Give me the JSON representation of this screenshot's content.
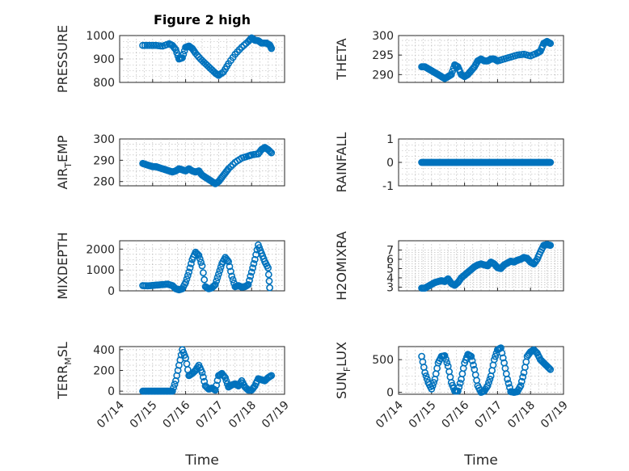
{
  "chart_data": [
    {
      "type": "scatter",
      "title": "Figure 2 high",
      "ylabel": "PRESSURE",
      "ylim": [
        800,
        1000
      ],
      "yticks": [
        "800",
        "900",
        "1000"
      ],
      "xlim": [
        0,
        5
      ],
      "xticks": [
        "07/14",
        "07/15",
        "07/16",
        "07/17",
        "07/18",
        "07/19"
      ],
      "x_tick_labels_visible": false,
      "xlabel": "",
      "series": [
        {
          "x": [
            0.7,
            0.9,
            1.1,
            1.3,
            1.5,
            1.6,
            1.7,
            1.8,
            1.9,
            2.0,
            2.1,
            2.2,
            2.3,
            2.45,
            2.6,
            2.75,
            2.9,
            3.0,
            3.15,
            3.3,
            3.5,
            3.7,
            3.9,
            4.0,
            4.1,
            4.2,
            4.3,
            4.45,
            4.55,
            4.6
          ],
          "y": [
            958,
            958,
            958,
            955,
            965,
            958,
            940,
            900,
            905,
            950,
            955,
            945,
            925,
            900,
            880,
            860,
            840,
            830,
            845,
            880,
            920,
            950,
            975,
            990,
            980,
            978,
            968,
            968,
            960,
            945
          ]
        }
      ]
    },
    {
      "type": "scatter",
      "ylabel": "THETA",
      "ylim": [
        288,
        300
      ],
      "yticks": [
        "290",
        "295",
        "300"
      ],
      "xlim": [
        0,
        5
      ],
      "xticks": [
        "07/14",
        "07/15",
        "07/16",
        "07/17",
        "07/18",
        "07/19"
      ],
      "x_tick_labels_visible": false,
      "xlabel": "",
      "series": [
        {
          "x": [
            0.7,
            0.8,
            0.9,
            1.0,
            1.1,
            1.2,
            1.3,
            1.4,
            1.5,
            1.6,
            1.7,
            1.8,
            1.9,
            2.0,
            2.1,
            2.2,
            2.3,
            2.4,
            2.5,
            2.6,
            2.7,
            2.8,
            2.9,
            3.0,
            3.2,
            3.4,
            3.6,
            3.8,
            4.0,
            4.2,
            4.3,
            4.4,
            4.5,
            4.6
          ],
          "y": [
            292,
            292,
            291.5,
            291,
            290.5,
            290,
            289.5,
            289,
            289.5,
            290,
            292.5,
            292,
            290,
            289.5,
            290,
            291,
            292,
            293.5,
            294,
            293.5,
            293.5,
            294,
            294,
            293.5,
            294,
            294.5,
            295,
            295.2,
            294.8,
            295.5,
            296,
            298,
            298.5,
            298
          ]
        }
      ]
    },
    {
      "type": "scatter",
      "ylabel": "AIR_TEMP",
      "ylabel_parts": {
        "main": "AIR",
        "sub": "T",
        "rest": "EMP"
      },
      "ylim": [
        278,
        300
      ],
      "yticks": [
        "280",
        "290",
        "300"
      ],
      "xlim": [
        0,
        5
      ],
      "xticks": [
        "07/14",
        "07/15",
        "07/16",
        "07/17",
        "07/18",
        "07/19"
      ],
      "x_tick_labels_visible": false,
      "xlabel": "",
      "series": [
        {
          "x": [
            0.7,
            0.8,
            0.9,
            1.0,
            1.1,
            1.2,
            1.3,
            1.4,
            1.5,
            1.6,
            1.7,
            1.8,
            1.9,
            2.0,
            2.1,
            2.2,
            2.3,
            2.4,
            2.5,
            2.6,
            2.7,
            2.8,
            2.9,
            3.0,
            3.1,
            3.2,
            3.3,
            3.5,
            3.7,
            3.9,
            4.0,
            4.2,
            4.3,
            4.4,
            4.5,
            4.6
          ],
          "y": [
            288.5,
            288,
            287.5,
            287,
            287,
            286.5,
            286,
            285.5,
            285,
            284.5,
            285,
            286,
            285.5,
            285,
            286,
            285,
            284.5,
            285,
            283,
            282,
            281,
            280,
            279,
            280,
            282,
            284,
            286,
            289,
            291,
            292,
            292.5,
            293,
            295,
            296,
            295,
            293.5
          ]
        }
      ]
    },
    {
      "type": "scatter",
      "ylabel": "RAINFALL",
      "ylim": [
        -1,
        1
      ],
      "yticks": [
        "-1",
        "0",
        "1"
      ],
      "xlim": [
        0,
        5
      ],
      "xticks": [
        "07/14",
        "07/15",
        "07/16",
        "07/17",
        "07/18",
        "07/19"
      ],
      "x_tick_labels_visible": false,
      "xlabel": "",
      "series": [
        {
          "x": [
            0.7,
            0.8,
            0.9,
            1.0,
            1.1,
            1.2,
            1.3,
            1.4,
            1.5,
            1.6,
            1.7,
            1.8,
            1.9,
            2.0,
            2.1,
            2.2,
            2.3,
            2.4,
            2.5,
            2.6,
            2.7,
            2.8,
            2.9,
            3.0,
            3.1,
            3.2,
            3.3,
            3.4,
            3.5,
            3.6,
            3.7,
            3.8,
            3.9,
            4.0,
            4.1,
            4.2,
            4.3,
            4.4,
            4.5,
            4.6
          ],
          "y": [
            0,
            0,
            0,
            0,
            0,
            0,
            0,
            0,
            0,
            0,
            0,
            0,
            0,
            0,
            0,
            0,
            0,
            0,
            0,
            0,
            0,
            0,
            0,
            0,
            0,
            0,
            0,
            0,
            0,
            0,
            0,
            0,
            0,
            0,
            0,
            0,
            0,
            0,
            0,
            0
          ]
        }
      ]
    },
    {
      "type": "scatter",
      "ylabel": "MIXDEPTH",
      "ylim": [
        0,
        2400
      ],
      "yticks": [
        "0",
        "1000",
        "2000"
      ],
      "xlim": [
        0,
        5
      ],
      "xticks": [
        "07/14",
        "07/15",
        "07/16",
        "07/17",
        "07/18",
        "07/19"
      ],
      "x_tick_labels_visible": false,
      "xlabel": "",
      "series": [
        {
          "x": [
            0.7,
            0.85,
            1.0,
            1.15,
            1.3,
            1.45,
            1.6,
            1.7,
            1.8,
            1.9,
            2.0,
            2.1,
            2.2,
            2.3,
            2.4,
            2.5,
            2.6,
            2.7,
            2.8,
            2.9,
            3.0,
            3.1,
            3.2,
            3.3,
            3.4,
            3.5,
            3.6,
            3.7,
            3.8,
            3.9,
            4.0,
            4.1,
            4.2,
            4.3,
            4.4,
            4.5,
            4.55
          ],
          "y": [
            250,
            240,
            260,
            280,
            300,
            320,
            250,
            100,
            50,
            100,
            400,
            900,
            1500,
            1850,
            1700,
            1200,
            200,
            100,
            150,
            300,
            800,
            1300,
            1600,
            1400,
            700,
            200,
            250,
            180,
            200,
            300,
            900,
            1500,
            2200,
            1800,
            1400,
            1100,
            150
          ]
        }
      ]
    },
    {
      "type": "scatter",
      "ylabel": "H2OMIXRA",
      "ylim": [
        2.6,
        8.0
      ],
      "yticks": [
        "3",
        "4",
        "5",
        "6",
        "7"
      ],
      "xlim": [
        0,
        5
      ],
      "xticks": [
        "07/14",
        "07/15",
        "07/16",
        "07/17",
        "07/18",
        "07/19"
      ],
      "x_tick_labels_visible": false,
      "xlabel": "",
      "series": [
        {
          "x": [
            0.7,
            0.8,
            0.9,
            1.0,
            1.1,
            1.2,
            1.3,
            1.4,
            1.5,
            1.6,
            1.7,
            1.8,
            1.9,
            2.0,
            2.1,
            2.2,
            2.3,
            2.4,
            2.5,
            2.6,
            2.7,
            2.8,
            2.9,
            3.0,
            3.1,
            3.2,
            3.3,
            3.4,
            3.5,
            3.6,
            3.7,
            3.8,
            3.9,
            4.0,
            4.1,
            4.2,
            4.3,
            4.4,
            4.5,
            4.6
          ],
          "y": [
            2.9,
            2.9,
            3.1,
            3.3,
            3.5,
            3.6,
            3.7,
            3.6,
            3.9,
            3.4,
            3.2,
            3.5,
            4.0,
            4.3,
            4.6,
            4.9,
            5.2,
            5.4,
            5.5,
            5.4,
            5.3,
            5.7,
            5.5,
            5.1,
            5.0,
            5.4,
            5.6,
            5.8,
            5.7,
            5.9,
            6.0,
            6.2,
            6.1,
            5.7,
            5.5,
            6.0,
            6.8,
            7.5,
            7.6,
            7.5
          ]
        }
      ]
    },
    {
      "type": "scatter",
      "ylabel": "TERR_MSL",
      "ylabel_parts": {
        "main": "TERR",
        "sub": "M",
        "rest": "SL"
      },
      "ylim": [
        -30,
        430
      ],
      "yticks": [
        "0",
        "200",
        "400"
      ],
      "xlim": [
        0,
        5
      ],
      "xticks": [
        "07/14",
        "07/15",
        "07/16",
        "07/17",
        "07/18",
        "07/19"
      ],
      "x_tick_labels_visible": true,
      "xlabel": "Time",
      "series": [
        {
          "x": [
            0.7,
            0.8,
            0.9,
            1.0,
            1.1,
            1.2,
            1.3,
            1.4,
            1.5,
            1.6,
            1.7,
            1.8,
            1.9,
            2.0,
            2.1,
            2.2,
            2.3,
            2.4,
            2.5,
            2.6,
            2.7,
            2.8,
            2.9,
            3.0,
            3.1,
            3.2,
            3.3,
            3.4,
            3.5,
            3.6,
            3.7,
            3.8,
            3.9,
            4.0,
            4.1,
            4.2,
            4.3,
            4.4,
            4.5,
            4.6
          ],
          "y": [
            0,
            0,
            0,
            0,
            0,
            0,
            0,
            0,
            0,
            0,
            100,
            250,
            400,
            320,
            150,
            170,
            200,
            250,
            180,
            50,
            20,
            30,
            10,
            150,
            170,
            130,
            40,
            60,
            70,
            50,
            100,
            40,
            10,
            10,
            50,
            120,
            110,
            100,
            130,
            150
          ]
        }
      ]
    },
    {
      "type": "scatter",
      "ylabel": "SUN_FLUX",
      "ylabel_parts": {
        "main": "SUN",
        "sub": "F",
        "rest": "LUX"
      },
      "ylim": [
        -30,
        700
      ],
      "yticks": [
        "0",
        "500"
      ],
      "xlim": [
        0,
        5
      ],
      "xticks": [
        "07/14",
        "07/15",
        "07/16",
        "07/17",
        "07/18",
        "07/19"
      ],
      "x_tick_labels_visible": true,
      "xlabel": "Time",
      "series": [
        {
          "x": [
            0.7,
            0.8,
            0.9,
            1.0,
            1.1,
            1.2,
            1.3,
            1.4,
            1.5,
            1.6,
            1.7,
            1.8,
            1.9,
            2.0,
            2.1,
            2.2,
            2.3,
            2.4,
            2.5,
            2.6,
            2.7,
            2.8,
            2.9,
            3.0,
            3.1,
            3.2,
            3.3,
            3.4,
            3.5,
            3.6,
            3.7,
            3.8,
            3.9,
            4.0,
            4.1,
            4.2,
            4.3,
            4.4,
            4.5,
            4.6
          ],
          "y": [
            550,
            300,
            150,
            50,
            200,
            450,
            550,
            560,
            400,
            150,
            20,
            20,
            200,
            450,
            580,
            550,
            350,
            100,
            0,
            20,
            100,
            250,
            500,
            650,
            680,
            450,
            200,
            10,
            0,
            10,
            100,
            300,
            550,
            620,
            650,
            600,
            500,
            450,
            400,
            350
          ]
        }
      ]
    }
  ]
}
